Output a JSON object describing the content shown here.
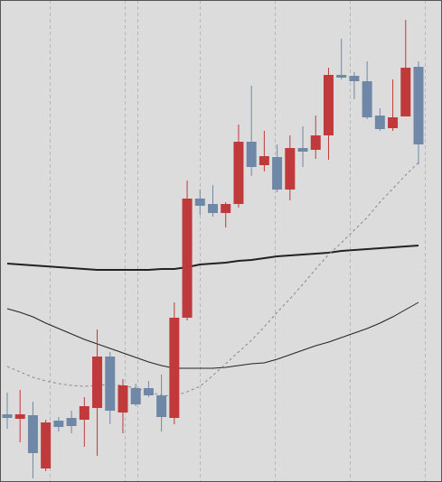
{
  "chart_data": {
    "type": "candlestick",
    "ylim": [
      0,
      534
    ],
    "up_color": "#c0393b",
    "down_color": "#6f88a8",
    "open": [
      75,
      70,
      74,
      15,
      68,
      71,
      69,
      82,
      139,
      77,
      104,
      104,
      96,
      71,
      182,
      314,
      308,
      298,
      308,
      377,
      351,
      360,
      324,
      370,
      368,
      384,
      451,
      450,
      444,
      406,
      392,
      405,
      460
    ],
    "high": [
      99,
      102,
      89,
      69,
      72,
      79,
      94,
      169,
      144,
      114,
      109,
      112,
      119,
      199,
      334,
      324,
      329,
      310,
      396,
      439,
      389,
      374,
      384,
      394,
      406,
      459,
      491,
      454,
      466,
      414,
      446,
      512,
      466
    ],
    "low": [
      59,
      44,
      4,
      12,
      56,
      54,
      39,
      29,
      64,
      54,
      84,
      94,
      56,
      64,
      179,
      296,
      294,
      282,
      304,
      339,
      344,
      321,
      312,
      349,
      358,
      357,
      446,
      424,
      402,
      389,
      389,
      405,
      352
    ],
    "close": [
      71,
      75,
      32,
      66,
      61,
      62,
      84,
      139,
      79,
      107,
      86,
      96,
      72,
      182,
      314,
      306,
      298,
      308,
      377,
      349,
      361,
      324,
      370,
      366,
      384,
      451,
      448,
      444,
      404,
      391,
      404,
      459,
      374
    ],
    "lines": [
      {
        "color": "#222222",
        "width": 2,
        "dashed": false,
        "values": [
          242,
          241,
          240,
          239,
          238,
          237,
          236,
          235,
          235,
          235,
          235,
          235,
          236,
          236,
          238,
          241,
          242,
          243,
          245,
          246,
          248,
          250,
          251,
          252,
          253,
          254,
          256,
          257,
          258,
          259,
          260,
          261,
          262
        ]
      },
      {
        "color": "#222222",
        "width": 1,
        "dashed": false,
        "values": [
          192,
          188,
          183,
          176,
          170,
          164,
          158,
          153,
          148,
          143,
          138,
          133,
          129,
          126,
          126,
          126,
          126,
          127,
          129,
          131,
          132,
          136,
          141,
          146,
          151,
          155,
          160,
          165,
          170,
          176,
          183,
          191,
          199
        ]
      },
      {
        "color": "#888888",
        "width": 1,
        "dashed": true,
        "values": [
          128,
          122,
          116,
          112,
          109,
          107,
          106,
          107,
          108,
          107,
          104,
          100,
          96,
          95,
          100,
          106,
          118,
          131,
          144,
          157,
          172,
          188,
          203,
          219,
          236,
          252,
          265,
          279,
          293,
          310,
          325,
          340,
          354
        ]
      }
    ]
  }
}
